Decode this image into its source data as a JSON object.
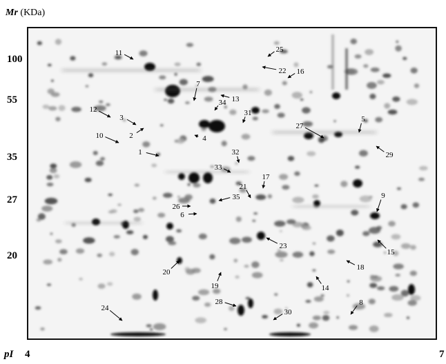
{
  "axis": {
    "mr_symbol": "Mr",
    "mr_unit": "(KDa)",
    "mr_ticks": [
      "100",
      "55",
      "35",
      "27",
      "20"
    ],
    "pi_symbol": "pI",
    "pi_start": "4",
    "pi_end": "7"
  },
  "spots": [
    "11",
    "25",
    "22",
    "16",
    "7",
    "13",
    "34",
    "31",
    "12",
    "3",
    "2",
    "4",
    "27",
    "5",
    "10",
    "29",
    "1",
    "32",
    "33",
    "17",
    "21",
    "35",
    "26",
    "6",
    "9",
    "23",
    "15",
    "20",
    "19",
    "18",
    "14",
    "28",
    "30",
    "8",
    "24"
  ]
}
